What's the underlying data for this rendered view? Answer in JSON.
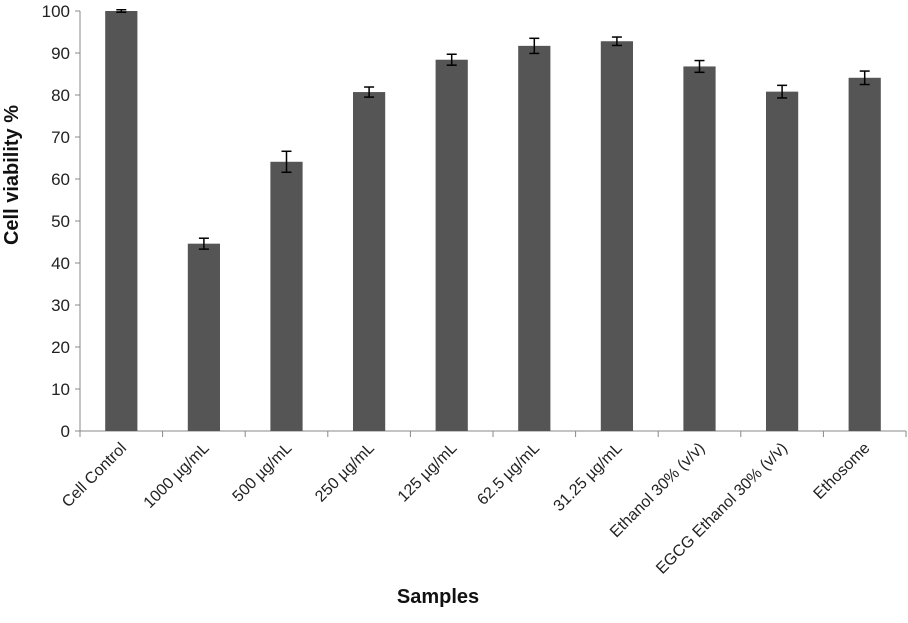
{
  "chart_data": {
    "type": "bar",
    "title": "",
    "xlabel": "Samples",
    "ylabel": "Cell viability %",
    "ylim": [
      0,
      100
    ],
    "yticks": [
      "0",
      "10",
      "20",
      "30",
      "40",
      "50",
      "60",
      "70",
      "80",
      "90",
      "100"
    ],
    "grid": false,
    "legend": "none",
    "categories": [
      "Cell Control",
      "1000 µg/mL",
      "500 µg/mL",
      "250 µg/mL",
      "125 µg/mL",
      "62.5 µg/mL",
      "31.25 µg/mL",
      "Ethanol 30% (v/v)",
      "EGCG Ethanol 30% (v/v)",
      "Ethosome"
    ],
    "values": [
      100,
      44.6,
      64.1,
      80.7,
      88.4,
      91.7,
      92.8,
      86.8,
      80.8,
      84.1
    ],
    "errors": [
      0.3,
      1.3,
      2.5,
      1.2,
      1.3,
      1.8,
      1.0,
      1.4,
      1.5,
      1.6
    ],
    "bar_color": "#555555"
  }
}
